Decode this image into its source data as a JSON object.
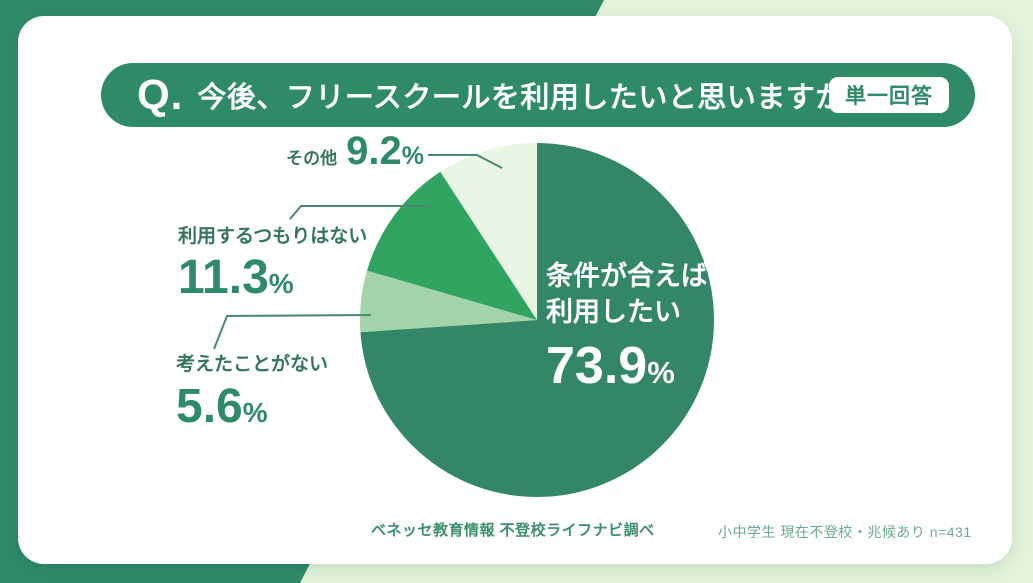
{
  "header": {
    "q_prefix": "Q.",
    "question": "今後、フリースクールを利用したいと思いますか",
    "badge": "単一回答"
  },
  "chart_data": {
    "type": "pie",
    "title": "今後、フリースクールを利用したいと思いますか",
    "unit": "%",
    "start_angle_deg": -90,
    "direction": "clockwise",
    "slices": [
      {
        "label": "条件が合えば利用したい",
        "value": 73.9,
        "color": "#338766"
      },
      {
        "label": "考えたことがない",
        "value": 5.6,
        "color": "#A3D3A8"
      },
      {
        "label": "利用するつもりはない",
        "value": 11.3,
        "color": "#30A562"
      },
      {
        "label": "その他",
        "value": 9.2,
        "color": "#E9F5E5"
      }
    ],
    "legend_position": "callout-labels"
  },
  "labels": {
    "main": {
      "line1": "条件が合えば",
      "line2": "利用したい",
      "value": "73.9",
      "pct": "%"
    },
    "sonota": {
      "label": "その他",
      "value": "9.2",
      "pct": "%"
    },
    "riyou_shinai": {
      "label": "利用するつもりはない",
      "value": "11.3",
      "pct": "%"
    },
    "kangaeta": {
      "label": "考えたことがない",
      "value": "5.6",
      "pct": "%"
    }
  },
  "footer": {
    "source": "ベネッセ教育情報 不登校ライフナビ調べ",
    "sample": "小中学生 現在不登校・兆候あり n=431"
  },
  "colors": {
    "chrome_green": "#2F8A68",
    "background_mint": "#E4F3DC",
    "card": "#FFFFFF",
    "label_text": "#35755C",
    "number_text": "#2F8A68"
  }
}
